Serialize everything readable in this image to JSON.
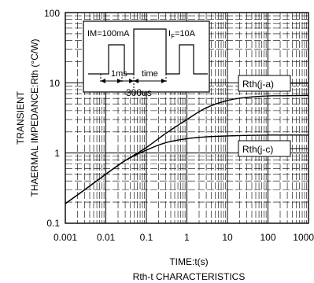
{
  "chart_data": {
    "type": "line",
    "title": "Rth-t CHARACTERISTICS",
    "xlabel": "TIME:t(s)",
    "ylabel_line1": "TRANSIENT",
    "ylabel_line2": "THAERMAL IMPEDANCE:Rth (°C/W)",
    "x_scale": "log",
    "y_scale": "log",
    "xlim": [
      0.001,
      1000
    ],
    "ylim": [
      0.1,
      100
    ],
    "grid": true,
    "x_tick_labels": [
      "0.001",
      "0.01",
      "0.1",
      "1",
      "10",
      "100",
      "1000"
    ],
    "y_tick_labels": [
      "0.1",
      "1",
      "10",
      "100"
    ],
    "series": [
      {
        "name": "Rth(j-a)",
        "x": [
          0.001,
          0.003,
          0.01,
          0.03,
          0.1,
          0.3,
          1,
          3,
          10,
          30,
          100,
          300,
          1000
        ],
        "y": [
          0.19,
          0.3,
          0.5,
          0.78,
          1.2,
          1.9,
          3.0,
          4.4,
          5.6,
          6.2,
          6.5,
          6.55,
          6.6
        ]
      },
      {
        "name": "Rth(j-c)",
        "x": [
          0.001,
          0.003,
          0.01,
          0.03,
          0.1,
          0.3,
          1,
          3,
          10,
          30,
          100,
          300,
          1000
        ],
        "y": [
          0.19,
          0.3,
          0.5,
          0.78,
          1.1,
          1.4,
          1.6,
          1.7,
          1.75,
          1.78,
          1.8,
          1.8,
          1.8
        ]
      }
    ],
    "legend_labels": [
      "Rth(j-a)",
      "Rth(j-c)"
    ],
    "inset": {
      "im_label": "IM=100mA",
      "if_label_main": "I",
      "if_label_sub": "F",
      "if_label_value": "=10A",
      "t1_label": "1ms",
      "time_label": "time",
      "period_label": "300us"
    }
  }
}
